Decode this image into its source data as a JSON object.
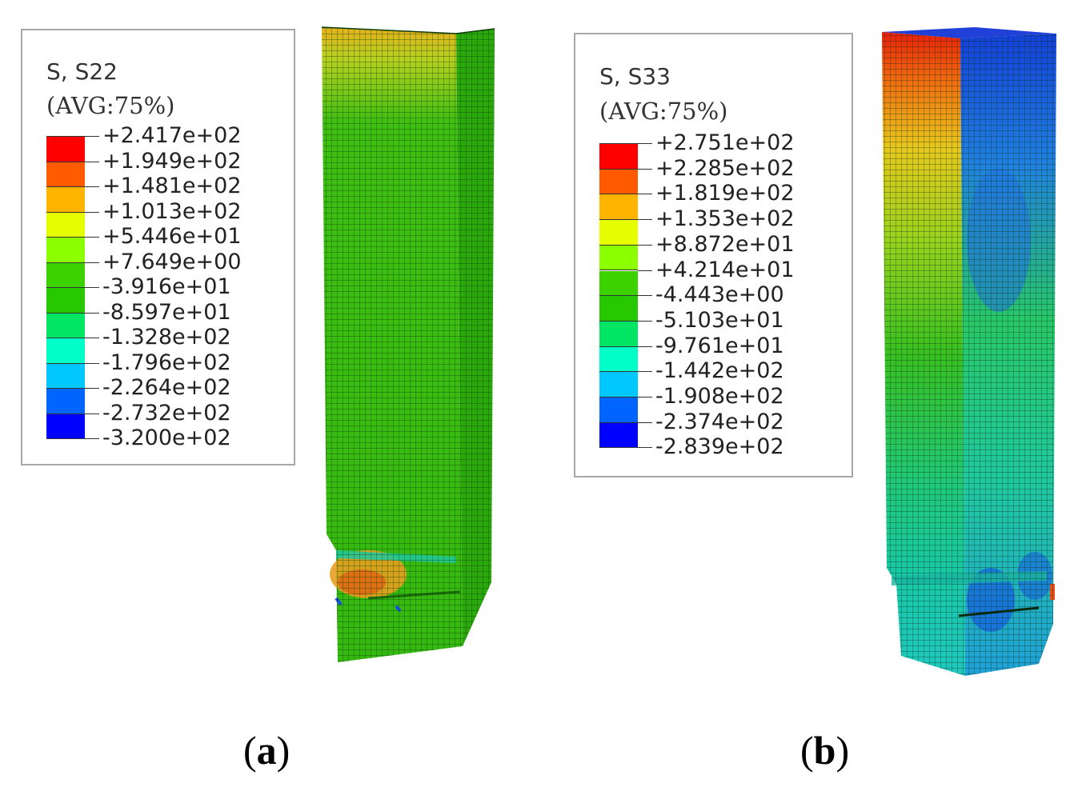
{
  "panels": [
    {
      "id": "a",
      "caption": "a",
      "legend": {
        "title": "S, S22",
        "subtitle": "(AVG:75%)",
        "values": [
          "+2.417e+02",
          "+1.949e+02",
          "+1.481e+02",
          "+1.013e+02",
          "+5.446e+01",
          "+7.649e+00",
          "-3.916e+01",
          "-8.597e+01",
          "-1.328e+02",
          "-1.796e+02",
          "-2.264e+02",
          "-2.732e+02",
          "-3.200e+02"
        ]
      }
    },
    {
      "id": "b",
      "caption": "b",
      "legend": {
        "title": "S, S33",
        "subtitle": "(AVG:75%)",
        "values": [
          "+2.751e+02",
          "+2.285e+02",
          "+1.819e+02",
          "+1.353e+02",
          "+8.872e+01",
          "+4.214e+01",
          "-4.443e+00",
          "-5.103e+01",
          "-9.761e+01",
          "-1.442e+02",
          "-1.908e+02",
          "-2.374e+02",
          "-2.839e+02"
        ]
      }
    }
  ],
  "colormap": [
    "#ff0000",
    "#ff5a00",
    "#ffb400",
    "#e6ff00",
    "#8cff00",
    "#3cd200",
    "#28c800",
    "#00e664",
    "#00ffc8",
    "#00c8ff",
    "#0064ff",
    "#0000ff"
  ],
  "mesh_colors": {
    "green": "#2fbf10",
    "light_green": "#5fd321",
    "yellow": "#c8e61e",
    "orange": "#f0a014",
    "red": "#e61e0a",
    "cyan": "#1ee6b4",
    "teal": "#10c88c",
    "blue": "#1450e6",
    "dark_blue": "#0a1ec8"
  }
}
